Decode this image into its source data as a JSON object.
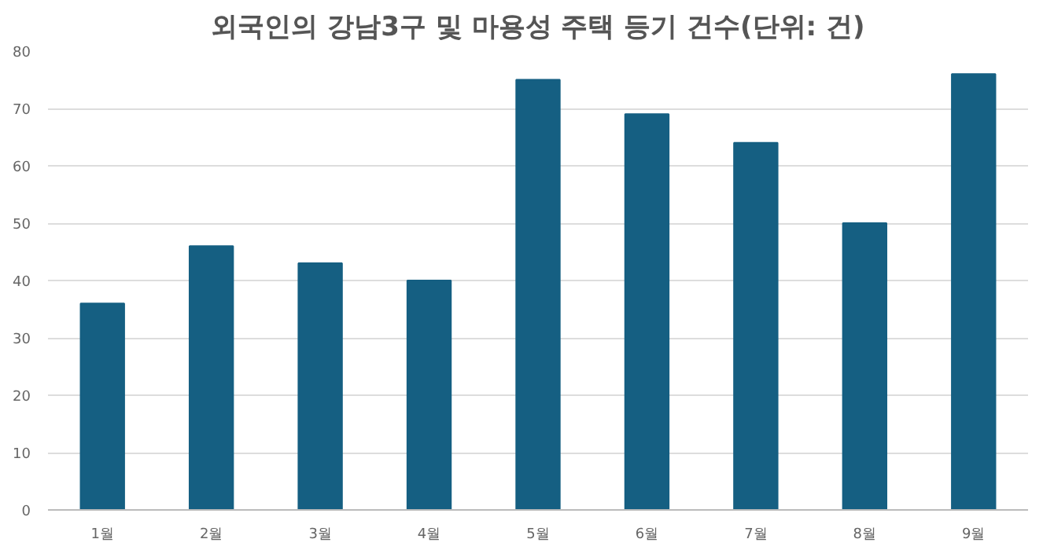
{
  "chart_data": {
    "type": "bar",
    "title": "외국인의 강남3구 및 마용성 주택 등기 건수(단위: 건)",
    "categories": [
      "1월",
      "2월",
      "3월",
      "4월",
      "5월",
      "6월",
      "7월",
      "8월",
      "9월"
    ],
    "values": [
      36,
      46,
      43,
      40,
      75,
      69,
      64,
      50,
      76
    ],
    "color": "#155f82",
    "ylim": [
      0,
      80
    ],
    "yticks": [
      0,
      10,
      20,
      30,
      40,
      50,
      60,
      70,
      80
    ],
    "grid": "y"
  }
}
